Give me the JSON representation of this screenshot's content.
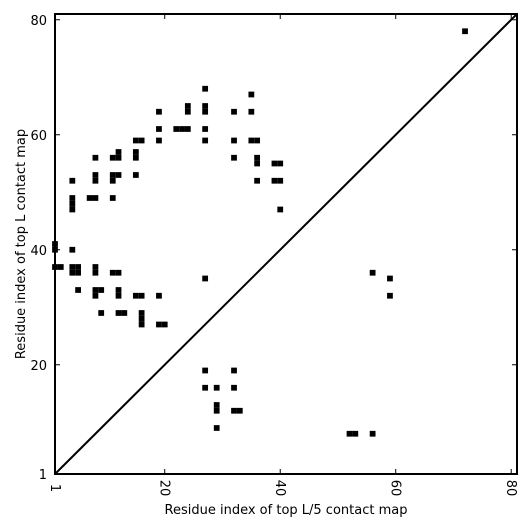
{
  "chart_data": {
    "type": "heatmap",
    "title": "",
    "xlabel": "Residue index of top L/5 contact map",
    "ylabel": "Residue index of top L contact map",
    "xlim": [
      1,
      81
    ],
    "ylim": [
      1,
      81
    ],
    "x_ticks": [
      1,
      20,
      40,
      60,
      80
    ],
    "x_tick_labels": [
      "1",
      "20",
      "40",
      "60",
      "80"
    ],
    "y_ticks": [
      1,
      20,
      40,
      60,
      80
    ],
    "y_tick_labels": [
      "1",
      "20",
      "40",
      "60",
      "80"
    ],
    "diagonal": true,
    "grid": false,
    "cell_color": "#000000",
    "upper_left_contacts": [
      [
        72,
        78
      ],
      [
        27,
        68
      ],
      [
        35,
        67
      ],
      [
        24,
        65
      ],
      [
        27,
        65
      ],
      [
        19,
        64
      ],
      [
        24,
        64
      ],
      [
        27,
        64
      ],
      [
        32,
        64
      ],
      [
        35,
        64
      ],
      [
        22,
        61
      ],
      [
        23,
        61
      ],
      [
        24,
        61
      ],
      [
        19,
        61
      ],
      [
        27,
        61
      ],
      [
        15,
        59
      ],
      [
        16,
        59
      ],
      [
        19,
        59
      ],
      [
        27,
        59
      ],
      [
        32,
        59
      ],
      [
        35,
        59
      ],
      [
        36,
        59
      ],
      [
        11,
        56
      ],
      [
        12,
        56
      ],
      [
        15,
        56
      ],
      [
        8,
        56
      ],
      [
        32,
        56
      ],
      [
        36,
        56
      ],
      [
        15,
        57
      ],
      [
        12,
        57
      ],
      [
        36,
        55
      ],
      [
        39,
        55
      ],
      [
        40,
        55
      ],
      [
        8,
        53
      ],
      [
        11,
        53
      ],
      [
        12,
        53
      ],
      [
        15,
        53
      ],
      [
        8,
        52
      ],
      [
        11,
        52
      ],
      [
        4,
        52
      ],
      [
        36,
        52
      ],
      [
        39,
        52
      ],
      [
        40,
        52
      ],
      [
        7,
        49
      ],
      [
        8,
        49
      ],
      [
        11,
        49
      ],
      [
        4,
        49
      ],
      [
        4,
        48
      ],
      [
        4,
        47
      ],
      [
        40,
        47
      ],
      [
        1,
        41
      ],
      [
        1,
        40
      ],
      [
        4,
        40
      ],
      [
        1,
        37
      ],
      [
        2,
        37
      ],
      [
        4,
        37
      ],
      [
        5,
        37
      ],
      [
        8,
        37
      ],
      [
        4,
        36
      ],
      [
        5,
        36
      ],
      [
        8,
        36
      ],
      [
        11,
        36
      ],
      [
        12,
        36
      ],
      [
        27,
        35
      ],
      [
        5,
        33
      ],
      [
        8,
        33
      ],
      [
        9,
        33
      ],
      [
        12,
        33
      ],
      [
        8,
        32
      ],
      [
        12,
        32
      ],
      [
        15,
        32
      ],
      [
        16,
        32
      ],
      [
        19,
        32
      ],
      [
        9,
        29
      ],
      [
        12,
        29
      ],
      [
        13,
        29
      ],
      [
        16,
        29
      ],
      [
        16,
        28
      ],
      [
        19,
        27
      ],
      [
        20,
        27
      ],
      [
        16,
        27
      ]
    ],
    "lower_right_contacts": [
      [
        56,
        36
      ],
      [
        59,
        35
      ],
      [
        59,
        32
      ],
      [
        27,
        19
      ],
      [
        32,
        19
      ],
      [
        27,
        16
      ],
      [
        29,
        16
      ],
      [
        32,
        16
      ],
      [
        29,
        13
      ],
      [
        29,
        12
      ],
      [
        32,
        12
      ],
      [
        33,
        12
      ],
      [
        29,
        9
      ],
      [
        52,
        8
      ],
      [
        53,
        8
      ],
      [
        56,
        8
      ]
    ]
  }
}
